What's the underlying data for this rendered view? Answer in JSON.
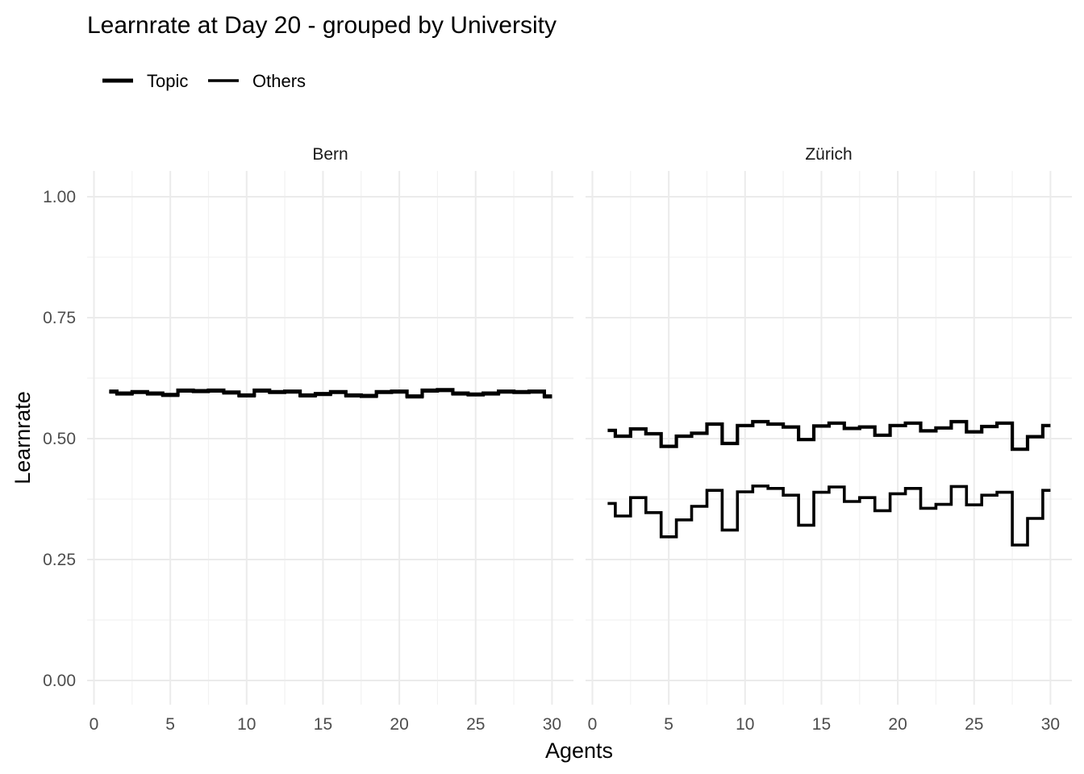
{
  "chart_data": {
    "type": "line",
    "step": true,
    "title": "Learnrate at Day 20 - grouped by University",
    "xlabel": "Agents",
    "ylabel": "Learnrate",
    "xlim": [
      0,
      30
    ],
    "ylim": [
      0,
      1
    ],
    "x_ticks": [
      "0",
      "5",
      "10",
      "15",
      "20",
      "25",
      "30"
    ],
    "y_ticks": [
      "0.00",
      "0.25",
      "0.50",
      "0.75",
      "1.00"
    ],
    "grid": true,
    "legend": {
      "position": "top-left",
      "entries": [
        {
          "label": "Topic",
          "line_width": "thick"
        },
        {
          "label": "Others",
          "line_width": "thin"
        }
      ]
    },
    "facets": [
      {
        "label": "Bern",
        "series": [
          {
            "name": "Topic",
            "x": [
              1,
              2,
              3,
              4,
              5,
              6,
              7,
              8,
              9,
              10,
              11,
              12,
              13,
              14,
              15,
              16,
              17,
              18,
              19,
              20,
              21,
              22,
              23,
              24,
              25,
              26,
              27,
              28,
              29,
              30
            ],
            "values": [
              0.598,
              0.594,
              0.597,
              0.594,
              0.591,
              0.6,
              0.599,
              0.6,
              0.596,
              0.59,
              0.6,
              0.597,
              0.598,
              0.59,
              0.593,
              0.597,
              0.59,
              0.589,
              0.597,
              0.598,
              0.588,
              0.6,
              0.601,
              0.594,
              0.592,
              0.594,
              0.598,
              0.597,
              0.598,
              0.588
            ]
          },
          {
            "name": "Others",
            "x": [
              1,
              2,
              3,
              4,
              5,
              6,
              7,
              8,
              9,
              10,
              11,
              12,
              13,
              14,
              15,
              16,
              17,
              18,
              19,
              20,
              21,
              22,
              23,
              24,
              25,
              26,
              27,
              28,
              29,
              30
            ],
            "values": [
              0.596,
              0.592,
              0.595,
              0.592,
              0.589,
              0.598,
              0.597,
              0.598,
              0.594,
              0.588,
              0.598,
              0.595,
              0.596,
              0.588,
              0.591,
              0.595,
              0.588,
              0.587,
              0.595,
              0.596,
              0.586,
              0.598,
              0.599,
              0.592,
              0.59,
              0.592,
              0.596,
              0.595,
              0.596,
              0.586
            ]
          }
        ]
      },
      {
        "label": "Zürich",
        "series": [
          {
            "name": "Topic",
            "x": [
              1,
              2,
              3,
              4,
              5,
              6,
              7,
              8,
              9,
              10,
              11,
              12,
              13,
              14,
              15,
              16,
              17,
              18,
              19,
              20,
              21,
              22,
              23,
              24,
              25,
              26,
              27,
              28,
              29,
              30
            ],
            "values": [
              0.517,
              0.505,
              0.52,
              0.51,
              0.484,
              0.505,
              0.511,
              0.53,
              0.49,
              0.527,
              0.535,
              0.53,
              0.524,
              0.498,
              0.526,
              0.532,
              0.521,
              0.524,
              0.507,
              0.527,
              0.532,
              0.516,
              0.522,
              0.535,
              0.514,
              0.525,
              0.532,
              0.478,
              0.504,
              0.527
            ]
          },
          {
            "name": "Others",
            "x": [
              1,
              2,
              3,
              4,
              5,
              6,
              7,
              8,
              9,
              10,
              11,
              12,
              13,
              14,
              15,
              16,
              17,
              18,
              19,
              20,
              21,
              22,
              23,
              24,
              25,
              26,
              27,
              28,
              29,
              30
            ],
            "values": [
              0.366,
              0.34,
              0.378,
              0.347,
              0.297,
              0.332,
              0.36,
              0.393,
              0.311,
              0.39,
              0.402,
              0.397,
              0.383,
              0.321,
              0.389,
              0.4,
              0.37,
              0.378,
              0.351,
              0.386,
              0.397,
              0.356,
              0.364,
              0.401,
              0.363,
              0.383,
              0.389,
              0.28,
              0.335,
              0.393
            ]
          }
        ]
      }
    ]
  },
  "colors": {
    "line": "#000000",
    "grid_major": "#ebebeb",
    "grid_minor": "#f2f2f2",
    "tick_text": "#4d4d4d"
  }
}
